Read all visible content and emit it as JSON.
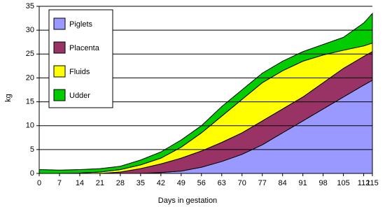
{
  "chart_data": {
    "type": "stacked-area",
    "x_label": "Days in gestation",
    "y_label": "kg",
    "x": [
      0,
      7,
      14,
      21,
      28,
      35,
      42,
      49,
      56,
      63,
      70,
      77,
      84,
      91,
      98,
      105,
      112,
      115
    ],
    "series": [
      {
        "name": "Piglets",
        "color": "#9999ff",
        "values": [
          0,
          0,
          0,
          0,
          0,
          0,
          0.2,
          0.5,
          1.3,
          2.5,
          4,
          6,
          8.5,
          11,
          13.5,
          16,
          18.5,
          19.5
        ]
      },
      {
        "name": "Placenta",
        "color": "#993366",
        "values": [
          0,
          0,
          0,
          0,
          0.3,
          1,
          1.8,
          2.7,
          3.4,
          4,
          4.5,
          5,
          5,
          5,
          5.5,
          6,
          6,
          6
        ]
      },
      {
        "name": "Fluids",
        "color": "#ffff00",
        "values": [
          0,
          0,
          0.1,
          0.3,
          0.5,
          0.8,
          1.2,
          2.3,
          3.8,
          5.5,
          7,
          8,
          8,
          7.5,
          5.8,
          3.8,
          2.2,
          1.8
        ]
      },
      {
        "name": "Udder",
        "color": "#00cc00",
        "values": [
          0.8,
          0.7,
          0.7,
          0.7,
          0.7,
          1,
          1.3,
          1.5,
          1.5,
          2,
          2,
          2,
          2,
          2,
          2.2,
          2.7,
          4.8,
          6.2
        ]
      }
    ],
    "xlim": [
      0,
      115
    ],
    "xticks": [
      0,
      7,
      14,
      21,
      28,
      35,
      42,
      49,
      56,
      63,
      70,
      77,
      84,
      91,
      98,
      105,
      112,
      115
    ],
    "ylim": [
      0,
      35
    ],
    "yticks": [
      0,
      5,
      10,
      15,
      20,
      25,
      30,
      35
    ],
    "grid": true
  }
}
